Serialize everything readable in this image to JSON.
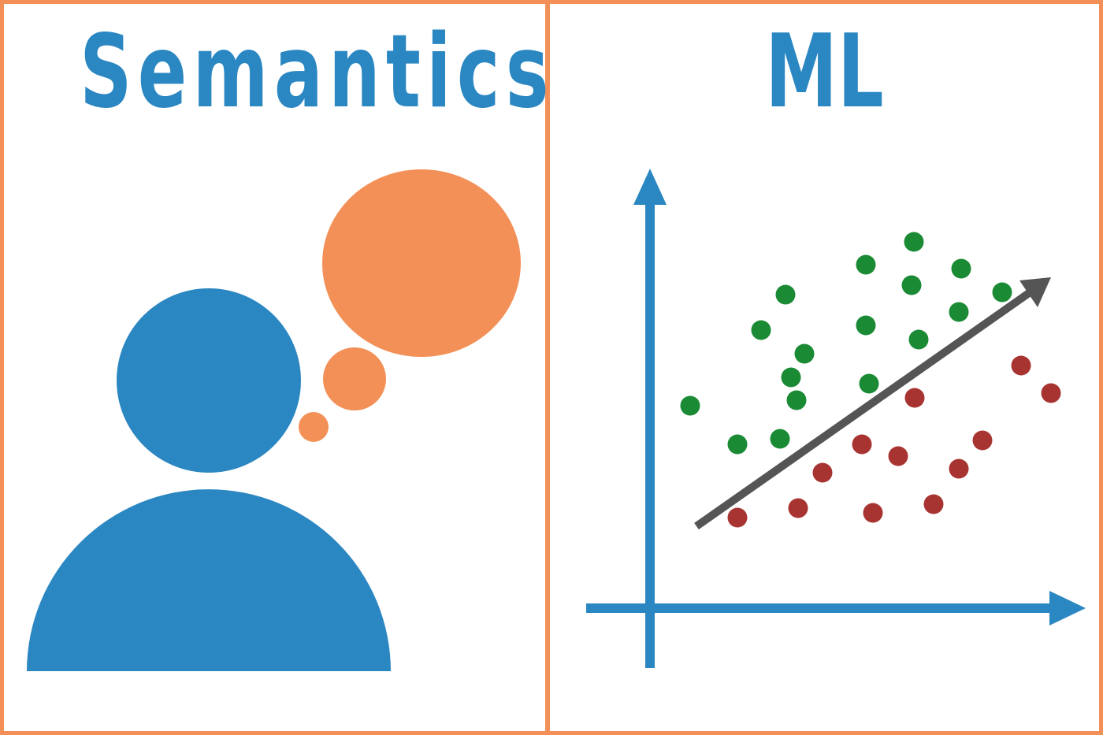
{
  "panels": {
    "left": {
      "title": "Semantics"
    },
    "right": {
      "title": "ML"
    }
  },
  "colors": {
    "border": "#f39058",
    "person": "#2b87c2",
    "thought": "#f39058",
    "axis": "#2b87c2",
    "arrow": "#555555",
    "class_a": "#1a8a34",
    "class_b": "#a83432"
  },
  "icons": {
    "left": [
      "person-icon",
      "thought-bubble-icon"
    ],
    "right": [
      "axis-arrow-icon",
      "decision-boundary-arrow-icon"
    ]
  }
}
